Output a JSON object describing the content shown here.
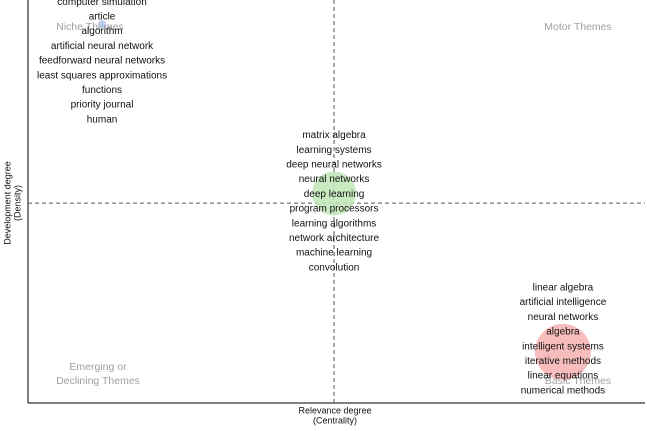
{
  "chart_data": {
    "type": "thematic-map",
    "x_label": [
      "Relevance degree",
      "(Centrality)"
    ],
    "y_label": [
      "Development degree",
      "(Density)"
    ],
    "quadrants": {
      "top_left": [
        "Niche Themes"
      ],
      "top_right": [
        "Motor Themes"
      ],
      "bottom_left": [
        "Emerging or",
        "Declining Themes"
      ],
      "bottom_right": [
        "Basic Themes"
      ]
    },
    "xlim": [
      0,
      1
    ],
    "ylim": [
      0,
      1
    ],
    "reference_lines": {
      "x": 0.496,
      "y": 0.496
    },
    "clusters": [
      {
        "x": 0.12,
        "y": 0.94,
        "size": 4,
        "color": "#aac4e6",
        "labels": [
          "computer simulation",
          "article",
          "algorithm",
          "artificial neural network",
          "feedforward neural networks",
          "least squares approximations",
          "functions",
          "priority journal",
          "human"
        ]
      },
      {
        "x": 0.496,
        "y": 0.52,
        "size": 22,
        "color": "#bfe5b5",
        "labels": [
          "matrix algebra",
          "learning systems",
          "deep neural networks",
          "neural networks",
          "deep learning",
          "program processors",
          "learning algorithms",
          "network architecture",
          "machine learning",
          "convolution"
        ]
      },
      {
        "x": 0.867,
        "y": 0.127,
        "size": 28,
        "color": "#f6b0b0",
        "labels": [
          "linear algebra",
          "artificial intelligence",
          "neural networks",
          "algebra",
          "intelligent systems",
          "iterative methods",
          "linear equations",
          "numerical methods"
        ]
      }
    ]
  }
}
